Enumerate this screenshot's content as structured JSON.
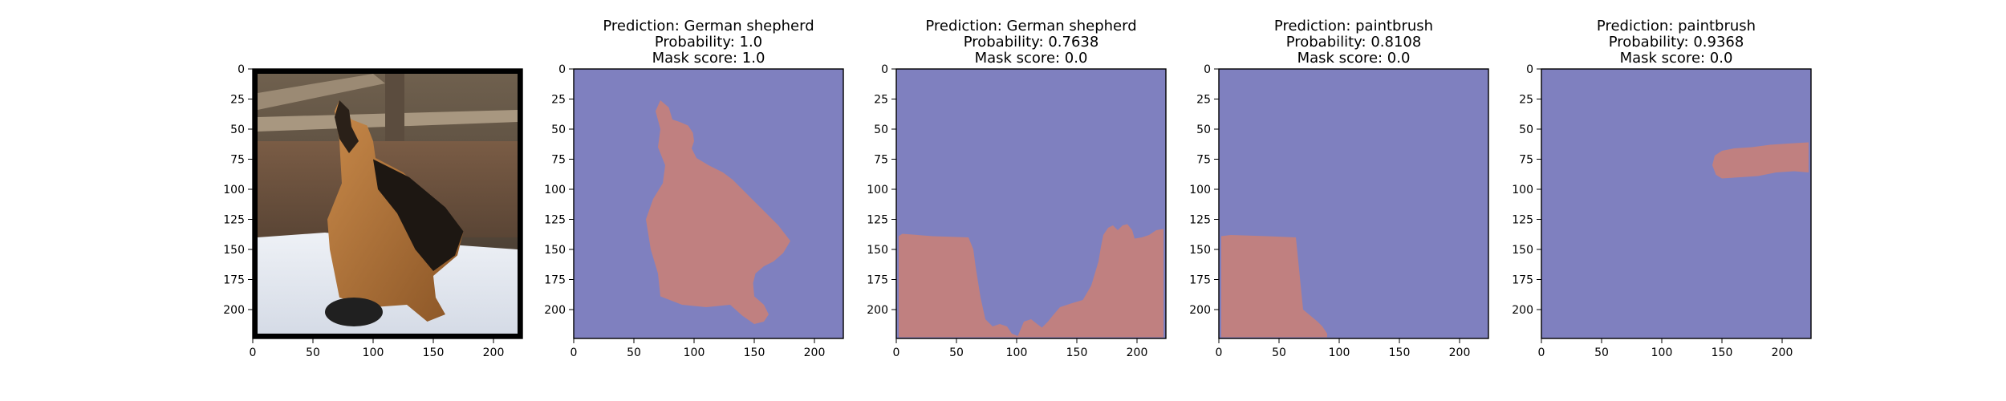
{
  "chart_data": [
    {
      "type": "image",
      "title": [],
      "image_content": "photo of a German shepherd dog lying in snow in front of a wooden fence",
      "xlim": [
        0,
        224
      ],
      "ylim": [
        224,
        0
      ],
      "xticks": [
        0,
        50,
        100,
        150,
        200
      ],
      "yticks": [
        0,
        25,
        50,
        75,
        100,
        125,
        150,
        175,
        200
      ]
    },
    {
      "type": "heatmap",
      "title": [
        "Prediction: German shepherd",
        "Probability: 1.0",
        "Mask score: 1.0"
      ],
      "prediction": "German shepherd",
      "probability": 1.0,
      "mask_score": 1.0,
      "mask_region": "dog silhouette",
      "xlim": [
        0,
        224
      ],
      "ylim": [
        224,
        0
      ],
      "xticks": [
        0,
        50,
        100,
        150,
        200
      ],
      "yticks": [
        0,
        25,
        50,
        75,
        100,
        125,
        150,
        175,
        200
      ]
    },
    {
      "type": "heatmap",
      "title": [
        "Prediction: German shepherd",
        "Probability: 0.7638",
        "Mask score: 0.0"
      ],
      "prediction": "German shepherd",
      "probability": 0.7638,
      "mask_score": 0.0,
      "mask_region": "snow / background at bottom",
      "xlim": [
        0,
        224
      ],
      "ylim": [
        224,
        0
      ],
      "xticks": [
        0,
        50,
        100,
        150,
        200
      ],
      "yticks": [
        0,
        25,
        50,
        75,
        100,
        125,
        150,
        175,
        200
      ]
    },
    {
      "type": "heatmap",
      "title": [
        "Prediction: paintbrush",
        "Probability: 0.8108",
        "Mask score: 0.0"
      ],
      "prediction": "paintbrush",
      "probability": 0.8108,
      "mask_score": 0.0,
      "mask_region": "bottom-left snow",
      "xlim": [
        0,
        224
      ],
      "ylim": [
        224,
        0
      ],
      "xticks": [
        0,
        50,
        100,
        150,
        200
      ],
      "yticks": [
        0,
        25,
        50,
        75,
        100,
        125,
        150,
        175,
        200
      ]
    },
    {
      "type": "heatmap",
      "title": [
        "Prediction: paintbrush",
        "Probability: 0.9368",
        "Mask score: 0.0"
      ],
      "prediction": "paintbrush",
      "probability": 0.9368,
      "mask_score": 0.0,
      "mask_region": "fence patch at right",
      "xlim": [
        0,
        224
      ],
      "ylim": [
        224,
        0
      ],
      "xticks": [
        0,
        50,
        100,
        150,
        200
      ],
      "yticks": [
        0,
        25,
        50,
        75,
        100,
        125,
        150,
        175,
        200
      ]
    }
  ],
  "colors": {
    "mask_background": "#7f80bf",
    "mask_foreground": "#c08080",
    "frame": "#000000"
  }
}
